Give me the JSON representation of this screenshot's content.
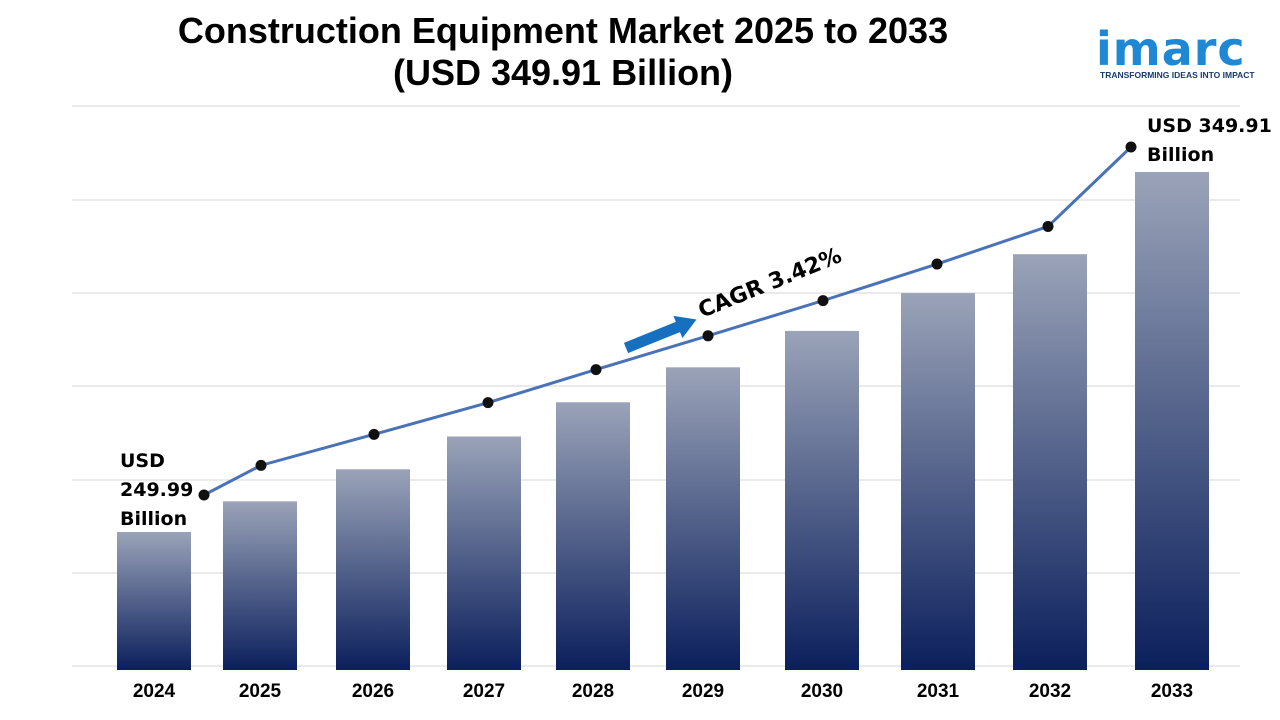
{
  "title": {
    "line1": "Construction Equipment Market 2025 to 2033",
    "line2": "(USD 349.91 Billion)"
  },
  "logo": {
    "word": "imarc",
    "tagline": "TRANSFORMING IDEAS INTO IMPACT",
    "color": "#1e88d4"
  },
  "chart_data": {
    "type": "bar",
    "title": "Construction Equipment Market 2025 to 2033 (USD 349.91 Billion)",
    "xlabel": "",
    "ylabel": "",
    "categories": [
      "2024",
      "2025",
      "2026",
      "2027",
      "2028",
      "2029",
      "2030",
      "2031",
      "2032",
      "2033"
    ],
    "series": [
      {
        "type": "bar",
        "values": [
          249.99,
          258.5,
          267.4,
          276.5,
          286.0,
          295.7,
          305.8,
          316.3,
          327.1,
          349.91
        ]
      },
      {
        "type": "line",
        "values": [
          249.99,
          258.5,
          267.4,
          276.5,
          286.0,
          295.7,
          305.8,
          316.3,
          327.1,
          349.91
        ]
      }
    ],
    "grid": true,
    "legend": "none",
    "annotations": {
      "start_label": [
        "USD",
        "249.99",
        "Billion"
      ],
      "end_label": [
        "USD 349.91",
        "Billion"
      ],
      "cagr": "CAGR 3.42%"
    },
    "colors": {
      "bar_top": "#9aa3b8",
      "bar_bottom": "#0b1f5c",
      "line": "#4a72b8",
      "marker": "#111111",
      "arrow": "#1670bf",
      "grid": "#d6d6d6"
    }
  }
}
